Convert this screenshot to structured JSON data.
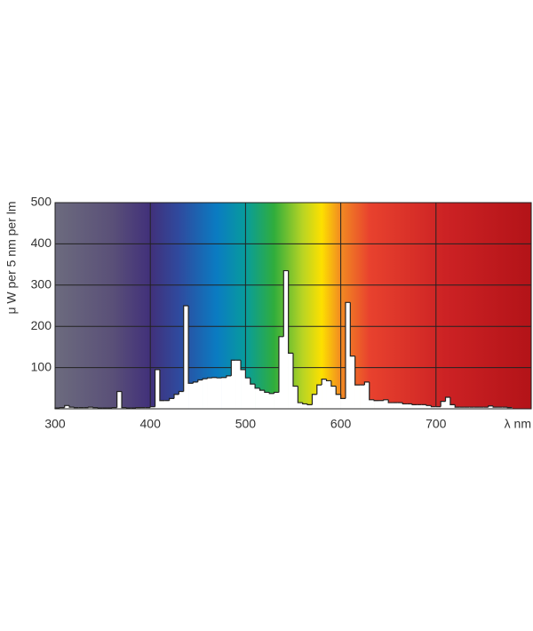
{
  "chart_data": {
    "type": "histogram",
    "y_label": "μ W per 5 nm per lm",
    "x_label": "λ nm",
    "bins": [
      300,
      305,
      310,
      315,
      320,
      325,
      330,
      335,
      340,
      345,
      350,
      355,
      360,
      365,
      370,
      375,
      380,
      385,
      390,
      395,
      400,
      405,
      410,
      415,
      420,
      425,
      430,
      435,
      440,
      445,
      450,
      455,
      460,
      465,
      470,
      475,
      480,
      485,
      490,
      495,
      500,
      505,
      510,
      515,
      520,
      525,
      530,
      535,
      540,
      545,
      550,
      555,
      560,
      565,
      570,
      575,
      580,
      585,
      590,
      595,
      600,
      605,
      610,
      615,
      620,
      625,
      630,
      635,
      640,
      645,
      650,
      655,
      660,
      665,
      670,
      675,
      680,
      685,
      690,
      695,
      700,
      705,
      710,
      715,
      720,
      725,
      730,
      735,
      740,
      745,
      750,
      755,
      760,
      765,
      770,
      775,
      780
    ],
    "values": [
      2,
      3,
      8,
      4,
      3,
      3,
      3,
      4,
      3,
      2,
      2,
      2,
      3,
      42,
      3,
      2,
      2,
      3,
      3,
      3,
      5,
      95,
      20,
      20,
      25,
      35,
      42,
      250,
      62,
      65,
      70,
      73,
      75,
      76,
      75,
      76,
      80,
      118,
      118,
      95,
      75,
      60,
      50,
      45,
      40,
      37,
      40,
      175,
      335,
      135,
      55,
      15,
      12,
      10,
      35,
      58,
      72,
      68,
      55,
      35,
      25,
      258,
      128,
      58,
      58,
      65,
      22,
      20,
      20,
      22,
      15,
      15,
      15,
      12,
      12,
      10,
      10,
      10,
      8,
      5,
      5,
      18,
      28,
      10,
      4,
      4,
      4,
      4,
      4,
      4,
      4,
      7,
      4,
      4,
      4,
      3
    ],
    "color": "#ffffff",
    "xlim": [
      300,
      800
    ],
    "xticks": [
      300,
      400,
      500,
      600,
      700
    ],
    "ylim": [
      0,
      500
    ],
    "yticks": [
      100,
      200,
      300,
      400,
      500
    ],
    "grid": true
  }
}
